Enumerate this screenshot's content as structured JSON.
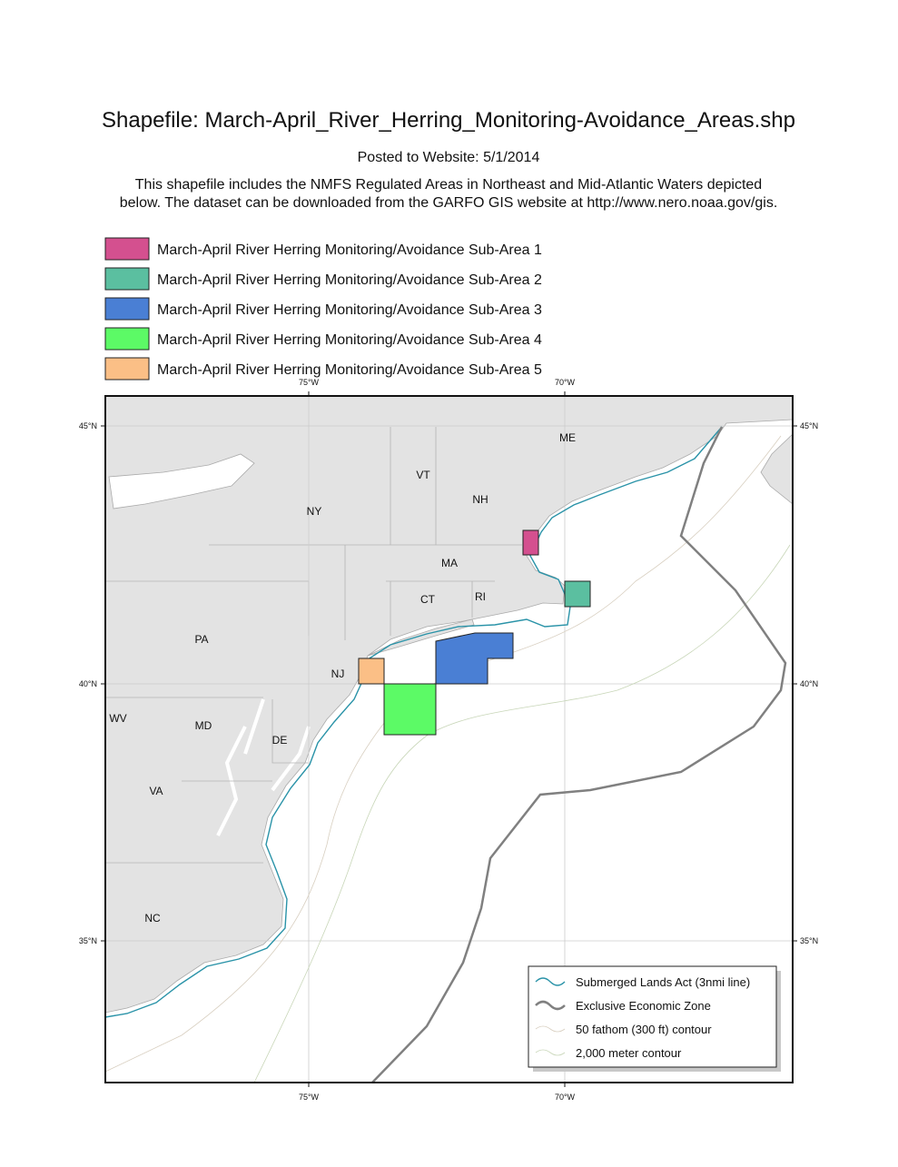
{
  "header": {
    "title": "Shapefile: March-April_River_Herring_Monitoring-Avoidance_Areas.shp",
    "posted": "Posted to Website: 5/1/2014",
    "description": [
      "This shapefile includes the NMFS Regulated Areas in Northeast and Mid-Atlantic Waters depicted",
      "below. The dataset can be downloaded from the GARFO GIS website at http://www.nero.noaa.gov/gis."
    ]
  },
  "legend": [
    {
      "label": "March-April River Herring Monitoring/Avoidance Sub-Area 1",
      "color": "#d4508f"
    },
    {
      "label": "March-April River Herring Monitoring/Avoidance Sub-Area 2",
      "color": "#5bbfa0"
    },
    {
      "label": "March-April River Herring Monitoring/Avoidance Sub-Area 3",
      "color": "#4a7fd4"
    },
    {
      "label": "March-April River Herring Monitoring/Avoidance Sub-Area 4",
      "color": "#5cfa66"
    },
    {
      "label": "March-April River Herring Monitoring/Avoidance Sub-Area 5",
      "color": "#fbbf86"
    }
  ],
  "map": {
    "lon_labels": [
      "75°W",
      "70°W"
    ],
    "lat_labels": [
      "45°N",
      "40°N",
      "35°N"
    ],
    "state_labels": [
      "ME",
      "VT",
      "NH",
      "NY",
      "MA",
      "CT",
      "RI",
      "PA",
      "NJ",
      "WV",
      "MD",
      "DE",
      "VA",
      "NC"
    ],
    "map_legend": [
      "Submerged Lands Act (3nmi line)",
      "Exclusive Economic Zone",
      "50 fathom (300 ft) contour",
      "2,000 meter contour"
    ]
  }
}
